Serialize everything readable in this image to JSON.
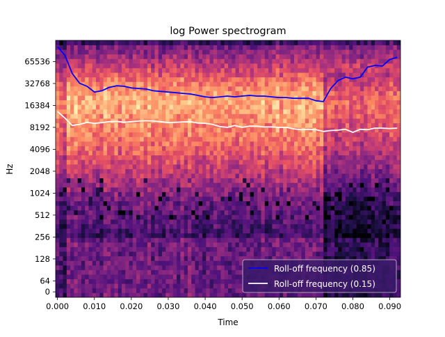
{
  "chart_data": {
    "type": "heatmap",
    "title": "log Power spectrogram",
    "xlabel": "Time",
    "ylabel": "Hz",
    "x_scale": "linear",
    "y_scale": "symlog",
    "xlim": [
      -0.0005,
      0.0929
    ],
    "ylim": [
      -32,
      128000
    ],
    "x_ticks": [
      0.0,
      0.01,
      0.02,
      0.03,
      0.04,
      0.05,
      0.06,
      0.07,
      0.08,
      0.09
    ],
    "x_tick_labels": [
      "0.000",
      "0.010",
      "0.020",
      "0.030",
      "0.040",
      "0.050",
      "0.060",
      "0.070",
      "0.080",
      "0.090"
    ],
    "y_ticks": [
      0,
      64,
      128,
      256,
      512,
      1024,
      2048,
      4096,
      8192,
      16384,
      32768,
      65536
    ],
    "y_tick_labels": [
      "0",
      "64",
      "128",
      "256",
      "512",
      "1024",
      "2048",
      "4096",
      "8192",
      "16384",
      "32768",
      "65536"
    ],
    "colormap": "magma",
    "legend_position": "lower-right",
    "series": [
      {
        "name": "Roll-off frequency (0.85)",
        "color": "#0000ff",
        "x": [
          0.0,
          0.002,
          0.004,
          0.006,
          0.008,
          0.01,
          0.012,
          0.014,
          0.016,
          0.018,
          0.02,
          0.022,
          0.024,
          0.026,
          0.028,
          0.03,
          0.032,
          0.034,
          0.036,
          0.038,
          0.04,
          0.042,
          0.044,
          0.046,
          0.048,
          0.05,
          0.052,
          0.054,
          0.056,
          0.058,
          0.06,
          0.062,
          0.064,
          0.066,
          0.068,
          0.07,
          0.072,
          0.074,
          0.076,
          0.078,
          0.08,
          0.082,
          0.084,
          0.086,
          0.088,
          0.09,
          0.092
        ],
        "values": [
          105000,
          80000,
          45000,
          33000,
          30000,
          25000,
          26000,
          29000,
          30500,
          30000,
          28500,
          28000,
          27500,
          26000,
          25500,
          25000,
          24500,
          24000,
          23500,
          22500,
          21500,
          21000,
          21500,
          22000,
          21500,
          22000,
          22500,
          22000,
          22000,
          21500,
          21000,
          21000,
          20500,
          20500,
          20500,
          19000,
          18500,
          28000,
          36000,
          40000,
          38000,
          40000,
          55000,
          58000,
          57000,
          70000,
          75000
        ]
      },
      {
        "name": "Roll-off frequency (0.15)",
        "color": "#ffffff",
        "x": [
          0.0,
          0.002,
          0.004,
          0.006,
          0.008,
          0.01,
          0.012,
          0.014,
          0.016,
          0.018,
          0.02,
          0.022,
          0.024,
          0.026,
          0.028,
          0.03,
          0.032,
          0.034,
          0.036,
          0.038,
          0.04,
          0.042,
          0.044,
          0.046,
          0.048,
          0.05,
          0.052,
          0.054,
          0.056,
          0.058,
          0.06,
          0.062,
          0.064,
          0.066,
          0.068,
          0.07,
          0.072,
          0.074,
          0.076,
          0.078,
          0.08,
          0.082,
          0.084,
          0.086,
          0.088,
          0.09,
          0.092
        ],
        "values": [
          13500,
          11000,
          8700,
          9000,
          9600,
          9300,
          9500,
          9800,
          9900,
          9600,
          9800,
          10000,
          10100,
          10000,
          9800,
          9500,
          9600,
          9700,
          9800,
          9400,
          9300,
          9000,
          8400,
          8200,
          8700,
          8200,
          8500,
          8500,
          8300,
          8300,
          8200,
          8200,
          7800,
          7600,
          7700,
          7600,
          7200,
          7400,
          7500,
          7700,
          7000,
          7700,
          7600,
          8000,
          8000,
          7900,
          8000
        ]
      }
    ]
  }
}
